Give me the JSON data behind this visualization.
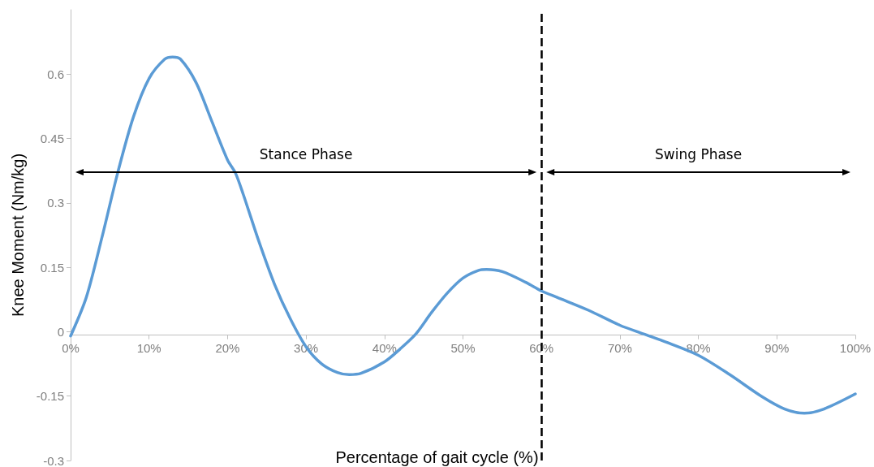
{
  "chart_data": {
    "type": "line",
    "xlabel": "Percentage of gait cycle (%)",
    "ylabel": "Knee Moment (Nm/kg)",
    "xlim": [
      0,
      100
    ],
    "ylim": [
      -0.3,
      0.75
    ],
    "xticks": [
      {
        "value": 0,
        "label": "0%"
      },
      {
        "value": 10,
        "label": "10%"
      },
      {
        "value": 20,
        "label": "20%"
      },
      {
        "value": 30,
        "label": "30%"
      },
      {
        "value": 40,
        "label": "40%"
      },
      {
        "value": 50,
        "label": "50%"
      },
      {
        "value": 60,
        "label": "60%"
      },
      {
        "value": 70,
        "label": "70%"
      },
      {
        "value": 80,
        "label": "80%"
      },
      {
        "value": 90,
        "label": "90%"
      },
      {
        "value": 100,
        "label": "100%"
      }
    ],
    "yticks": [
      -0.3,
      -0.15,
      0,
      0.15,
      0.3,
      0.45,
      0.6
    ],
    "grid": false,
    "marker": "none",
    "line_style": "solid",
    "series": [
      {
        "color": "#5b9bd5",
        "x": [
          0,
          2,
          4,
          6,
          8,
          10,
          12,
          13,
          14,
          16,
          18,
          20,
          21,
          22,
          24,
          26,
          28,
          30,
          32,
          34,
          35.5,
          37,
          40,
          42,
          44,
          46,
          48,
          50,
          52,
          53,
          55,
          58,
          60,
          62,
          66,
          70,
          73,
          76,
          80,
          84,
          88,
          91,
          93.5,
          96,
          100
        ],
        "values": [
          -0.01,
          0.08,
          0.22,
          0.37,
          0.5,
          0.59,
          0.635,
          0.64,
          0.635,
          0.58,
          0.49,
          0.4,
          0.37,
          0.32,
          0.21,
          0.11,
          0.03,
          -0.035,
          -0.075,
          -0.095,
          -0.1,
          -0.097,
          -0.07,
          -0.04,
          -0.005,
          0.045,
          0.09,
          0.125,
          0.143,
          0.145,
          0.14,
          0.115,
          0.095,
          0.08,
          0.05,
          0.015,
          -0.005,
          -0.025,
          -0.055,
          -0.1,
          -0.15,
          -0.18,
          -0.19,
          -0.18,
          -0.145
        ]
      }
    ],
    "ref_lines": [
      {
        "axis": "x",
        "value": 60,
        "color": "#000000",
        "line_style": "dashed"
      }
    ],
    "annotations": [
      "Stance Phase",
      "Swing Phase"
    ]
  }
}
